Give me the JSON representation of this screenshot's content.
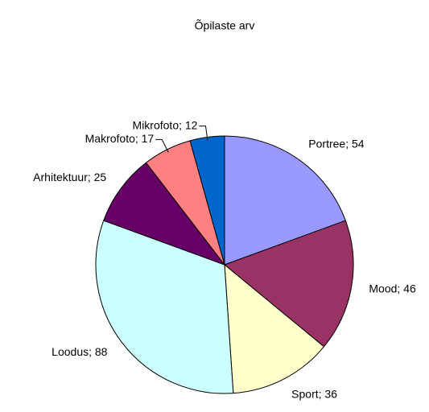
{
  "chart_data": {
    "type": "pie",
    "title": "Õpilaste arv",
    "categories": [
      "Portree",
      "Mood",
      "Sport",
      "Loodus",
      "Arhitektuur",
      "Makrofoto",
      "Mikrofoto"
    ],
    "values": [
      54,
      46,
      36,
      88,
      25,
      17,
      12
    ],
    "value_labels": [
      "Portree; 54",
      "Mood; 46",
      "Sport; 36",
      "Loodus; 88",
      "Arhitektuur; 25",
      "Makrofoto; 17",
      "Mikrofoto; 12"
    ],
    "colors": [
      "#9999ff",
      "#993366",
      "#ffffcc",
      "#ccffff",
      "#660066",
      "#ff8080",
      "#0066cc"
    ]
  }
}
